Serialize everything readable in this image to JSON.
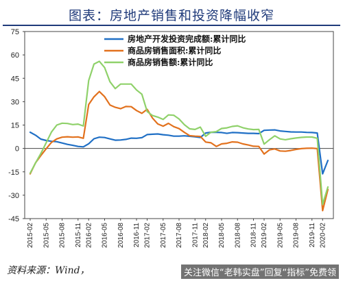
{
  "figure": {
    "title": "图表：房地产销售和投资降幅收窄",
    "source": "资料来源：Wind，",
    "watermark": "关注微信“老韩实盘”回复“指标”免费领"
  },
  "chart_data": {
    "type": "line",
    "ylim": [
      -45,
      75
    ],
    "yticks": [
      -45,
      -30,
      -15,
      0,
      15,
      30,
      45,
      60,
      75
    ],
    "x": [
      "2015-02",
      "2015-03",
      "2015-04",
      "2015-05",
      "2015-06",
      "2015-07",
      "2015-08",
      "2015-09",
      "2015-10",
      "2015-11",
      "2015-12",
      "2016-02",
      "2016-03",
      "2016-04",
      "2016-05",
      "2016-06",
      "2016-07",
      "2016-08",
      "2016-09",
      "2016-10",
      "2016-11",
      "2016-12",
      "2017-02",
      "2017-03",
      "2017-04",
      "2017-05",
      "2017-06",
      "2017-07",
      "2017-08",
      "2017-09",
      "2017-10",
      "2017-11",
      "2017-12",
      "2018-02",
      "2018-03",
      "2018-04",
      "2018-05",
      "2018-06",
      "2018-07",
      "2018-08",
      "2018-09",
      "2018-10",
      "2018-11",
      "2018-12",
      "2019-02",
      "2019-03",
      "2019-04",
      "2019-05",
      "2019-06",
      "2019-07",
      "2019-08",
      "2019-09",
      "2019-10",
      "2019-11",
      "2019-12",
      "2020-02",
      "2020-03"
    ],
    "xticks": [
      "2015-02",
      "2015-05",
      "2015-08",
      "2015-11",
      "2016-02",
      "2016-05",
      "2016-08",
      "2016-11",
      "2017-02",
      "2017-05",
      "2017-08",
      "2017-11",
      "2018-02",
      "2018-05",
      "2018-08",
      "2018-11",
      "2019-02",
      "2019-05",
      "2019-08",
      "2019-11",
      "2020-02"
    ],
    "grid": false,
    "legend": "top",
    "series": [
      {
        "name": "房地产开发投资完成额:累计同比",
        "color": "#1f6fc5",
        "values": [
          10.4,
          8.5,
          6.0,
          5.1,
          4.6,
          4.3,
          3.5,
          2.6,
          2.0,
          1.3,
          1.0,
          3.0,
          6.2,
          7.2,
          7.0,
          6.1,
          5.3,
          5.4,
          5.8,
          6.6,
          6.5,
          6.9,
          8.9,
          9.1,
          9.3,
          8.8,
          8.5,
          7.9,
          7.9,
          8.1,
          7.8,
          7.5,
          7.0,
          9.9,
          10.4,
          10.3,
          10.2,
          9.7,
          10.2,
          10.1,
          9.9,
          9.7,
          9.7,
          9.5,
          11.6,
          11.8,
          11.9,
          11.2,
          10.9,
          10.6,
          10.5,
          10.5,
          10.3,
          10.2,
          9.9,
          -16.3,
          -7.7
        ]
      },
      {
        "name": "商品房销售面积:累计同比",
        "color": "#e2711d",
        "values": [
          -16.3,
          -9.2,
          -4.6,
          -0.2,
          3.9,
          6.1,
          7.2,
          7.5,
          7.2,
          7.4,
          6.5,
          28.2,
          33.1,
          36.5,
          33.2,
          27.9,
          26.4,
          25.5,
          26.9,
          26.8,
          24.3,
          22.5,
          25.1,
          19.5,
          15.7,
          14.3,
          16.1,
          14.0,
          12.7,
          10.3,
          8.2,
          7.9,
          7.7,
          4.1,
          3.6,
          1.3,
          2.9,
          3.3,
          4.2,
          4.0,
          2.9,
          2.2,
          1.4,
          1.3,
          -3.6,
          -0.9,
          -0.3,
          -1.6,
          -1.8,
          -1.3,
          -0.6,
          -0.1,
          0.1,
          0.2,
          -0.1,
          -39.9,
          -26.3
        ]
      },
      {
        "name": "商品房销售额:累计同比",
        "color": "#8fd16a",
        "values": [
          -15.8,
          -9.3,
          -3.3,
          3.6,
          10.5,
          15.0,
          16.2,
          16.0,
          15.3,
          15.6,
          14.4,
          43.6,
          54.1,
          55.9,
          51.9,
          42.8,
          38.4,
          41.3,
          41.3,
          41.3,
          37.5,
          34.8,
          23.7,
          21.1,
          20.1,
          18.6,
          21.5,
          21.3,
          18.9,
          15.2,
          12.6,
          12.2,
          13.7,
          7.8,
          10.4,
          10.8,
          12.8,
          13.2,
          14.1,
          14.5,
          13.3,
          12.5,
          12.1,
          12.2,
          2.8,
          5.6,
          8.1,
          6.1,
          5.6,
          6.2,
          6.7,
          7.1,
          7.3,
          7.3,
          6.5,
          -35.9,
          -24.7
        ]
      }
    ]
  }
}
